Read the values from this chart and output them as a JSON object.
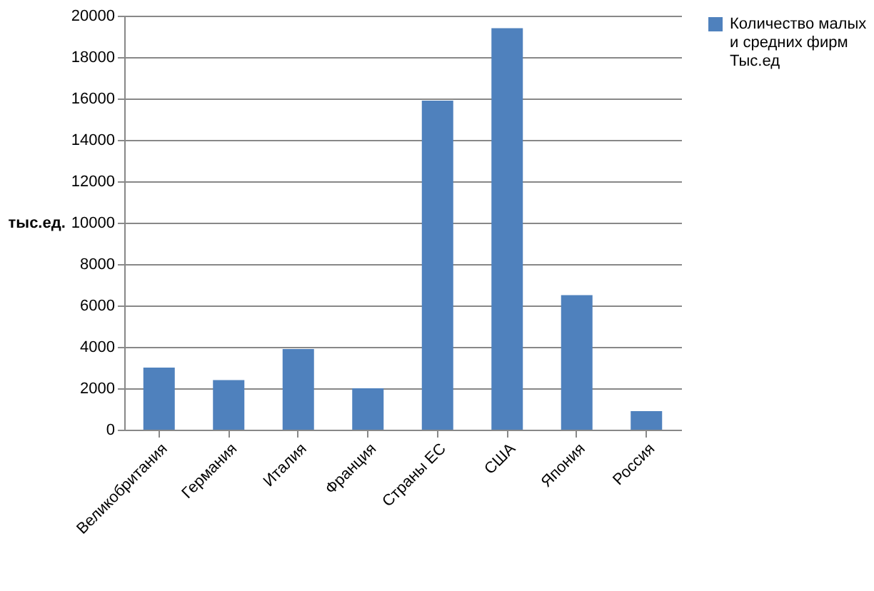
{
  "chart_data": {
    "type": "bar",
    "ylabel": "тыс.ед.",
    "categories": [
      "Великобритания",
      "Германия",
      "Италия",
      "Франция",
      "Страны ЕС",
      "США",
      "Япония",
      "Россия"
    ],
    "series": [
      {
        "name": "Количество малых и средних фирм Тыс.ед",
        "color": "#4f81bd",
        "values": [
          3000,
          2400,
          3900,
          2000,
          15900,
          19400,
          6500,
          900
        ]
      }
    ],
    "ylim": [
      0,
      20000
    ],
    "yticks": [
      0,
      2000,
      4000,
      6000,
      8000,
      10000,
      12000,
      14000,
      16000,
      18000,
      20000
    ],
    "grid": "y",
    "legend": "right"
  }
}
